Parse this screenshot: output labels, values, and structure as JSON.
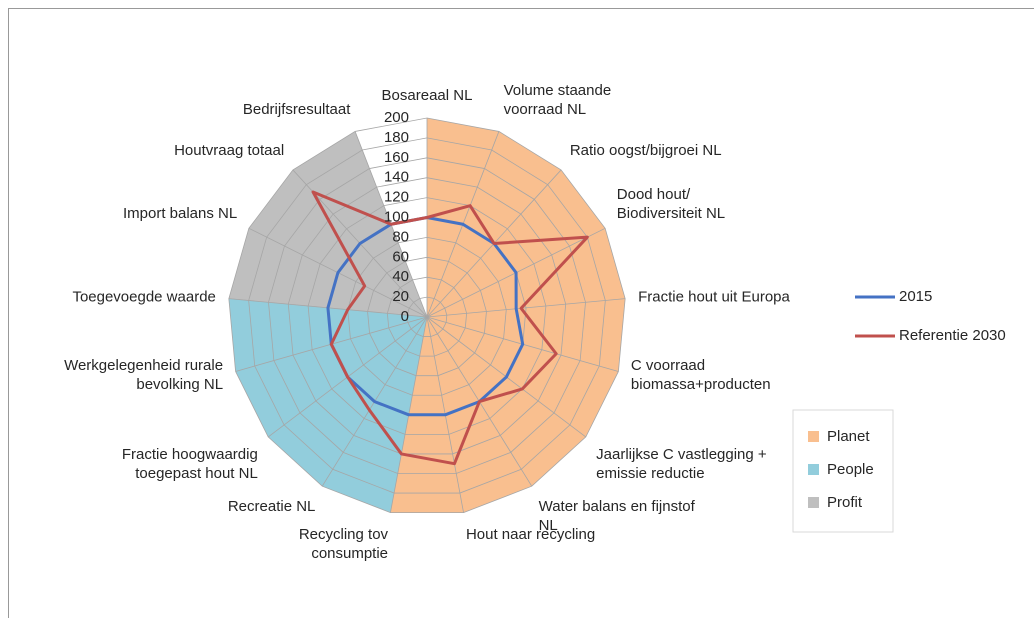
{
  "chart_data": {
    "type": "radar",
    "categories": [
      "Bosareaal NL",
      "Volume staande\nvoorraad NL",
      "Ratio oogst/bijgroei NL",
      "Dood hout/\nBiodiversiteit NL",
      "Fractie  hout uit Europa",
      "C voorraad\nbiomassa+producten",
      "Jaarlijkse C vastlegging +\nemissie reductie",
      "Water balans en fijnstof\nNL",
      "Hout naar recycling",
      "Recycling tov\nconsumptie",
      "Recreatie NL",
      "Fractie hoogwaardig\ntoegepast hout NL",
      "Werkgelegenheid rurale\nbevolking NL",
      "Toegevoegde waarde",
      "Import balans NL",
      "Houtvraag totaal",
      "Bedrijfsresultaat"
    ],
    "areas": [
      {
        "name": "Planet",
        "color": "#f9bf8f",
        "values": [
          200,
          200,
          200,
          200,
          200,
          200,
          200,
          200,
          200,
          200,
          0,
          0,
          0,
          0,
          0,
          0,
          0
        ]
      },
      {
        "name": "People",
        "color": "#92cddc",
        "values": [
          0,
          0,
          0,
          0,
          0,
          0,
          0,
          0,
          0,
          200,
          200,
          200,
          200,
          200,
          0,
          0,
          0
        ]
      },
      {
        "name": "Profit",
        "color": "#bfbfbf",
        "values": [
          0,
          0,
          0,
          0,
          0,
          0,
          0,
          0,
          0,
          0,
          0,
          0,
          0,
          200,
          200,
          200,
          200
        ]
      }
    ],
    "series": [
      {
        "name": "2015",
        "color": "#4472c4",
        "values": [
          100,
          100,
          100,
          100,
          90,
          100,
          100,
          100,
          100,
          100,
          100,
          100,
          100,
          100,
          100,
          100,
          100
        ]
      },
      {
        "name": "Referentie 2030",
        "color": "#c0504d",
        "values": [
          100,
          120,
          100,
          180,
          95,
          135,
          120,
          100,
          150,
          140,
          110,
          100,
          100,
          80,
          70,
          170,
          100
        ]
      }
    ],
    "ylim": [
      0,
      200
    ],
    "yticks": [
      0,
      20,
      40,
      60,
      80,
      100,
      120,
      140,
      160,
      180,
      200
    ],
    "grid": true
  }
}
